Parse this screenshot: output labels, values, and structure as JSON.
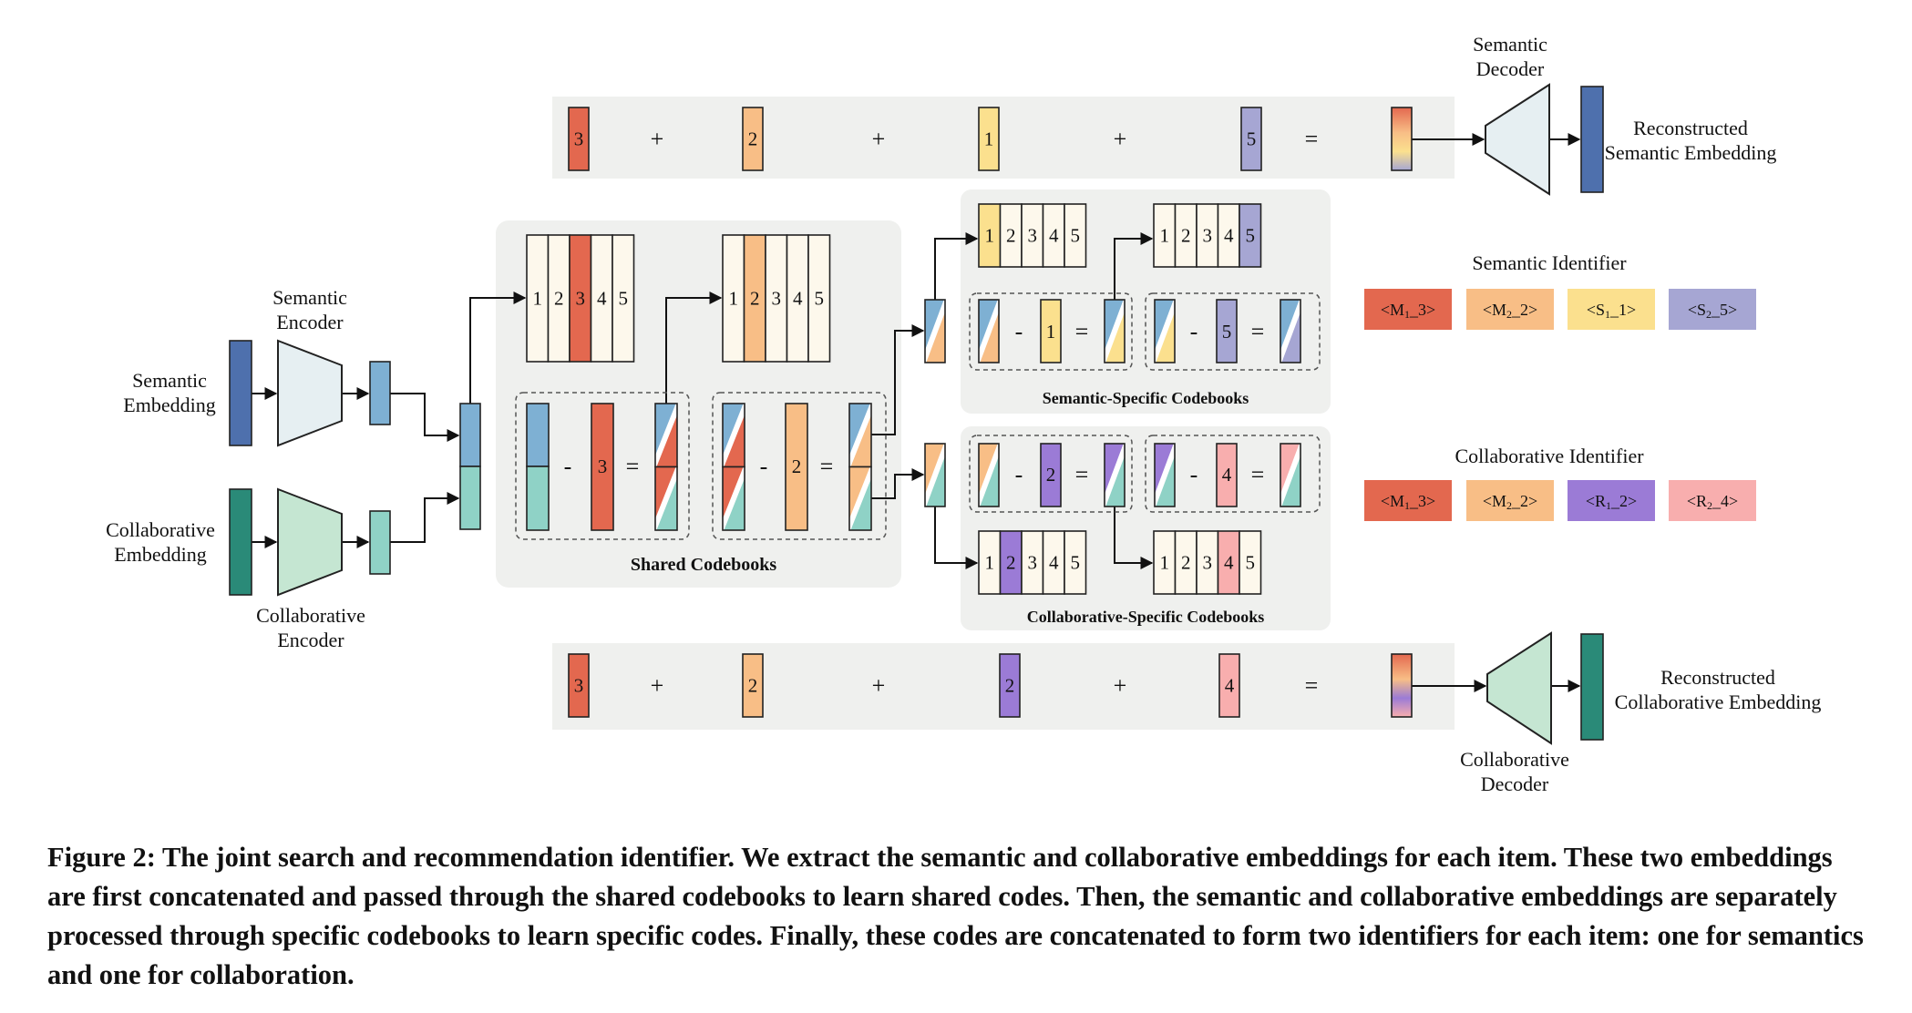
{
  "colors": {
    "semantic_emb": "#4e70ad",
    "semantic_latent": "#7eb0d3",
    "collab_emb": "#2a8a78",
    "collab_latent": "#8fd2c6",
    "code_red": "#e3684f",
    "code_orange": "#f8be86",
    "code_yellow": "#fbe08e",
    "code_lavender": "#a6a6d3",
    "code_purple": "#9b7bd6",
    "code_pink": "#f8aeae",
    "codebook_bg": "#fdf8ec",
    "panel_bg": "#eff0ee",
    "encoder_sem": "#e6eff2",
    "encoder_col": "#c5e6d2"
  },
  "labels": {
    "semantic_decoder": [
      "Semantic",
      "Decoder"
    ],
    "recon_semantic": [
      "Reconstructed",
      "Semantic Embedding"
    ],
    "semantic_encoder": [
      "Semantic",
      "Encoder"
    ],
    "semantic_embedding": [
      "Semantic",
      "Embedding"
    ],
    "collab_embedding": [
      "Collaborative",
      "Embedding"
    ],
    "collab_encoder": [
      "Collaborative",
      "Encoder"
    ],
    "collab_decoder": [
      "Collaborative",
      "Decoder"
    ],
    "recon_collab": [
      "Reconstructed",
      "Collaborative Embedding"
    ],
    "shared_codebooks": "Shared Codebooks",
    "semantic_specific": "Semantic-Specific Codebooks",
    "collab_specific": "Collaborative-Specific Codebooks",
    "semantic_identifier": "Semantic Identifier",
    "collab_identifier": "Collaborative Identifier"
  },
  "codebook_digits": [
    "1",
    "2",
    "3",
    "4",
    "5"
  ],
  "operators": {
    "plus": "+",
    "minus": "-",
    "equals": "="
  },
  "codes": {
    "shared1": "3",
    "shared2": "2",
    "sem1": "1",
    "sem2": "5",
    "col1": "2",
    "col2": "4"
  },
  "semantic_identifier_tokens": [
    {
      "main": "<M",
      "sub": "1",
      "rest": "_3>",
      "color": "#e3684f"
    },
    {
      "main": "<M",
      "sub": "2",
      "rest": "_2>",
      "color": "#f8be86"
    },
    {
      "main": "<S",
      "sub": "1",
      "rest": "_1>",
      "color": "#fbe08e"
    },
    {
      "main": "<S",
      "sub": "2",
      "rest": "_5>",
      "color": "#a6a6d3"
    }
  ],
  "collab_identifier_tokens": [
    {
      "main": "<M",
      "sub": "1",
      "rest": "_3>",
      "color": "#e3684f"
    },
    {
      "main": "<M",
      "sub": "2",
      "rest": "_2>",
      "color": "#f8be86"
    },
    {
      "main": "<R",
      "sub": "1",
      "rest": "_2>",
      "color": "#9b7bd6"
    },
    {
      "main": "<R",
      "sub": "2",
      "rest": "_4>",
      "color": "#f8aeae"
    }
  ],
  "caption": {
    "prefix": "Figure 2:",
    "text": "The joint search and recommendation identifier. We extract the semantic and collaborative embeddings for each item. These two embeddings are first concatenated and passed through the shared codebooks to learn shared codes. Then, the semantic and collaborative embeddings are separately processed through specific codebooks to learn specific codes. Finally, these codes are concatenated to form two identifiers for each item: one for semantics and one for collaboration."
  }
}
